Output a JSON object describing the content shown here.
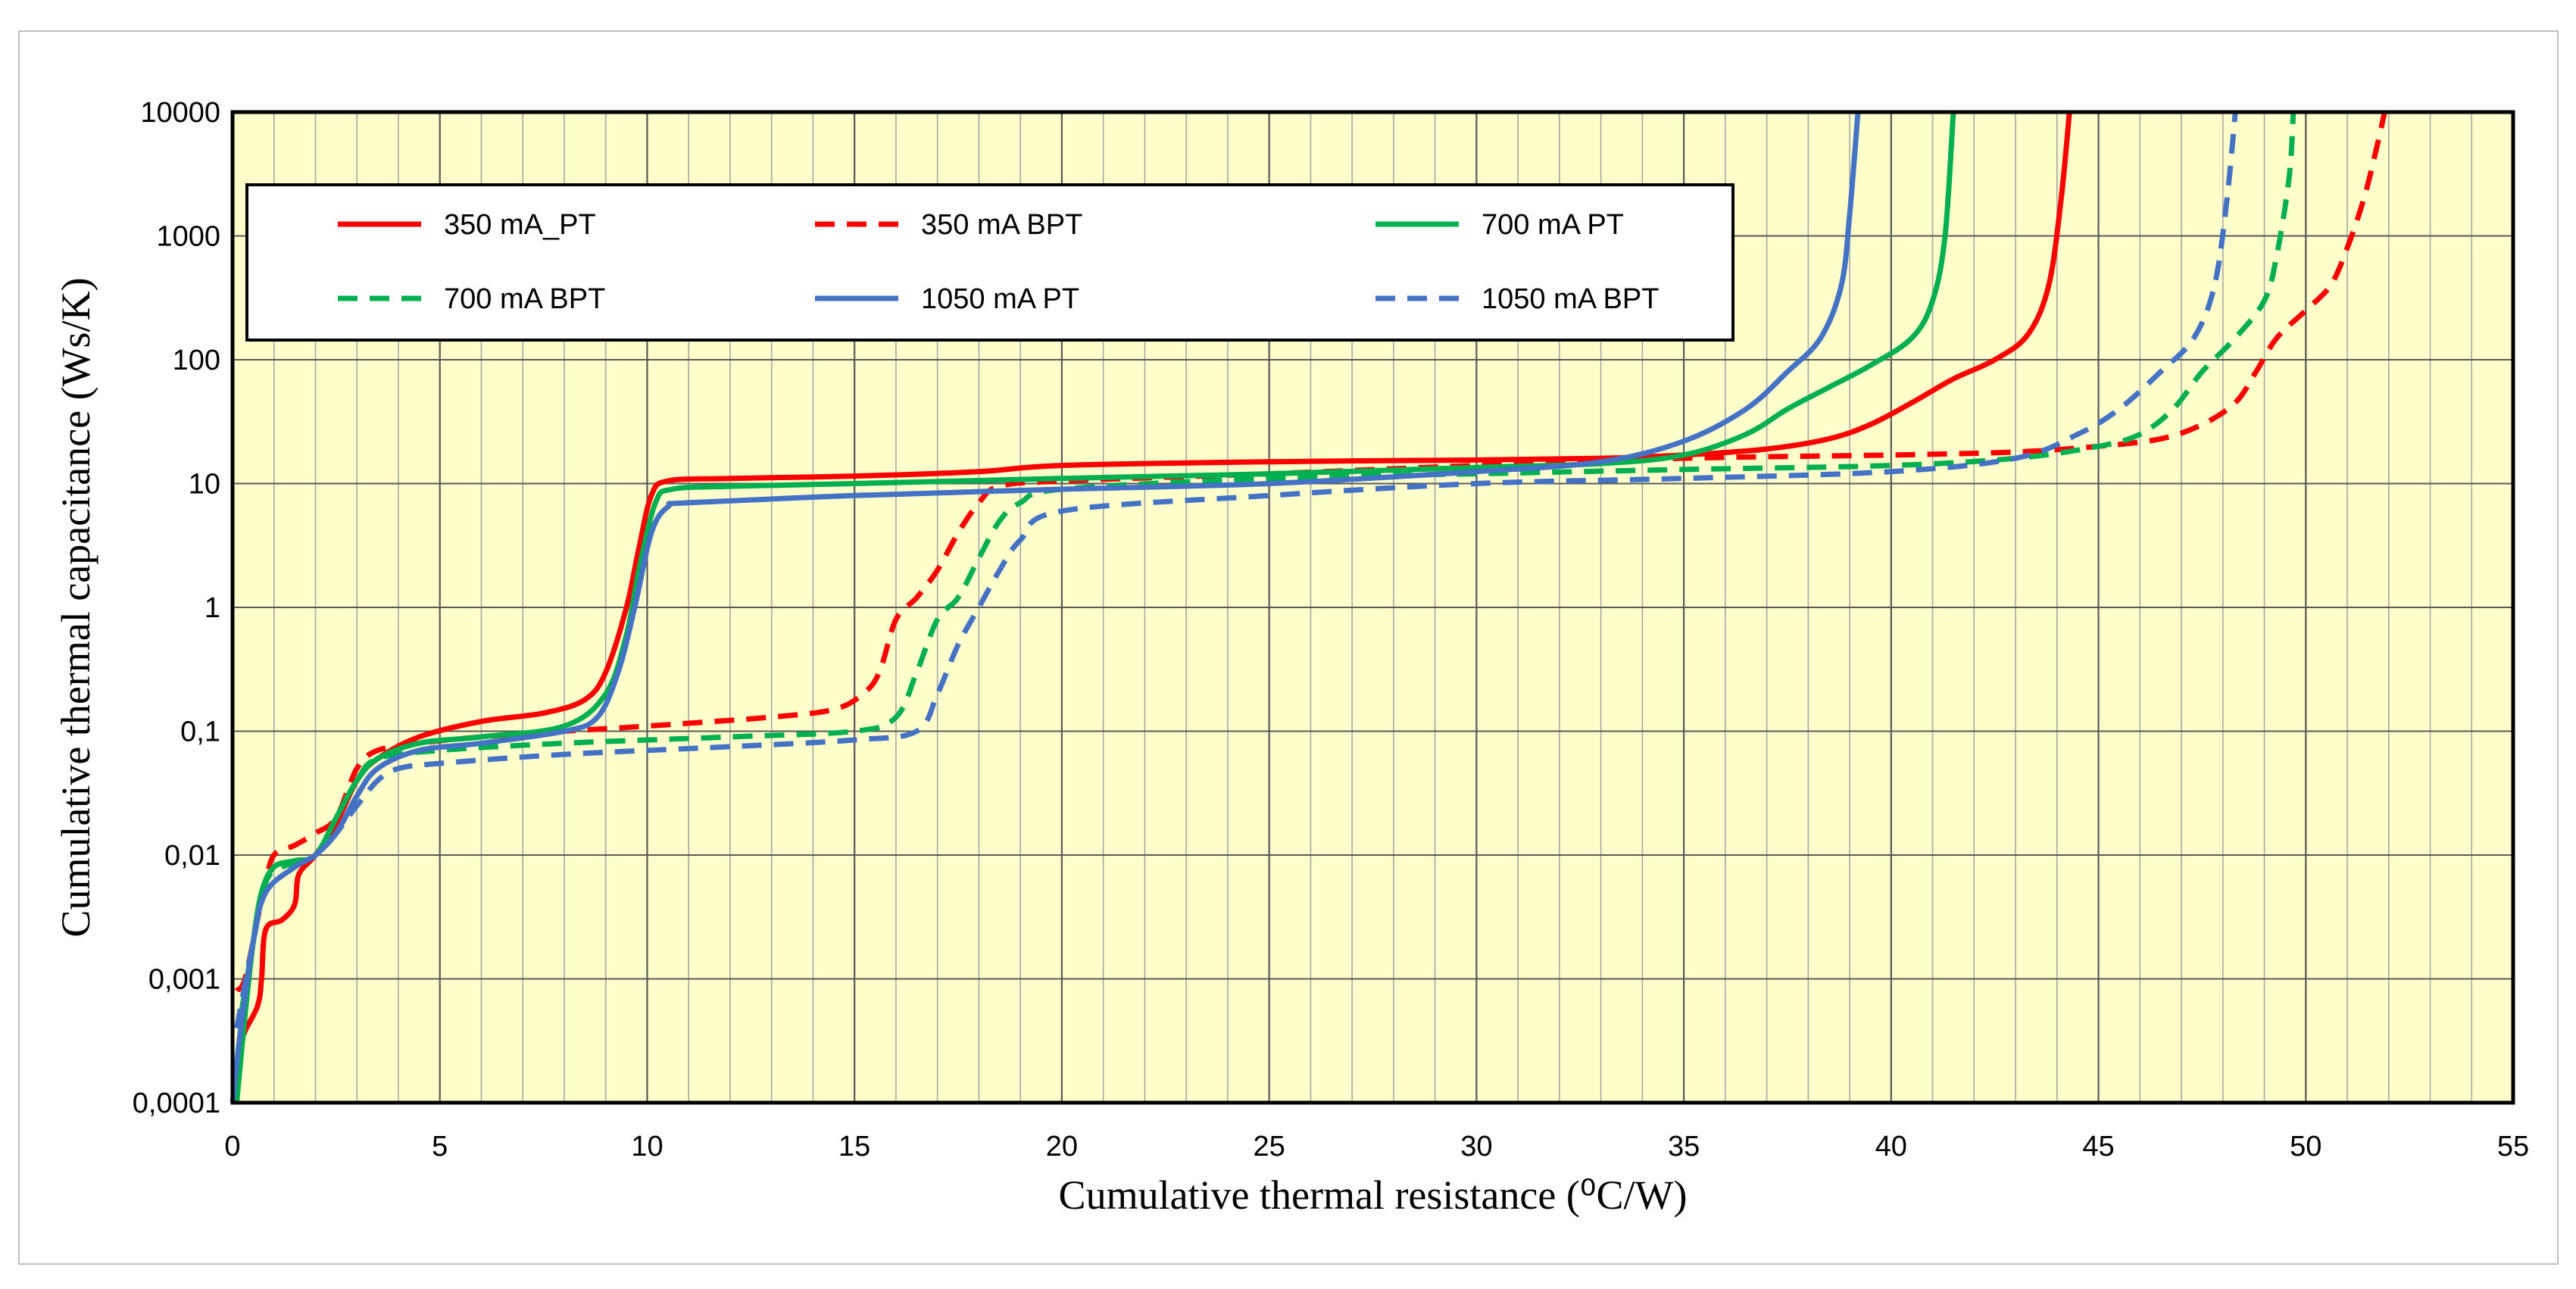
{
  "chart_data": {
    "type": "line",
    "title": "",
    "xlabel": "Cumulative thermal resistance (⁰C/W)",
    "ylabel": "Cumulative thermal capacitance (Ws/K)",
    "xlim": [
      0,
      55
    ],
    "ylim": [
      0.0001,
      10000
    ],
    "yscale": "log",
    "grid": true,
    "background": "#ffffcc",
    "x_ticks": [
      "0",
      "5",
      "10",
      "15",
      "20",
      "25",
      "30",
      "35",
      "40",
      "45",
      "50",
      "55"
    ],
    "y_ticks": [
      "0,0001",
      "0,001",
      "0,01",
      "0,1",
      "1",
      "10",
      "100",
      "1000",
      "10000"
    ],
    "legend_position": "top-left",
    "series": [
      {
        "name": "350 mA_PT",
        "color": "#ff0000",
        "dash": "solid",
        "points": [
          [
            0.1,
            0.0001
          ],
          [
            0.2,
            0.0003
          ],
          [
            0.6,
            0.0006
          ],
          [
            0.7,
            0.001
          ],
          [
            0.8,
            0.0025
          ],
          [
            1.2,
            0.003
          ],
          [
            1.5,
            0.004
          ],
          [
            1.6,
            0.007
          ],
          [
            2.0,
            0.01
          ],
          [
            2.5,
            0.018
          ],
          [
            3.0,
            0.04
          ],
          [
            3.5,
            0.06
          ],
          [
            4.5,
            0.09
          ],
          [
            6.0,
            0.12
          ],
          [
            7.5,
            0.14
          ],
          [
            8.5,
            0.18
          ],
          [
            9.0,
            0.3
          ],
          [
            9.5,
            1.0
          ],
          [
            9.8,
            3.0
          ],
          [
            10.1,
            8.0
          ],
          [
            10.5,
            10.5
          ],
          [
            12,
            11
          ],
          [
            15,
            11.5
          ],
          [
            18,
            12.5
          ],
          [
            20,
            14
          ],
          [
            25,
            15
          ],
          [
            30,
            15.5
          ],
          [
            33,
            16
          ],
          [
            35,
            17
          ],
          [
            37,
            19
          ],
          [
            38.5,
            23
          ],
          [
            39.5,
            30
          ],
          [
            40.5,
            45
          ],
          [
            41.5,
            70
          ],
          [
            42.5,
            100
          ],
          [
            43.3,
            160
          ],
          [
            43.8,
            400
          ],
          [
            44.1,
            2000
          ],
          [
            44.3,
            10000
          ]
        ]
      },
      {
        "name": "350 mA BPT",
        "color": "#ff0000",
        "dash": "dashed",
        "points": [
          [
            0.1,
            0.0008
          ],
          [
            0.3,
            0.001
          ],
          [
            0.6,
            0.003
          ],
          [
            0.8,
            0.006
          ],
          [
            1.0,
            0.01
          ],
          [
            1.5,
            0.012
          ],
          [
            2.0,
            0.015
          ],
          [
            2.5,
            0.02
          ],
          [
            3.0,
            0.05
          ],
          [
            3.5,
            0.07
          ],
          [
            4.5,
            0.08
          ],
          [
            6,
            0.09
          ],
          [
            8,
            0.1
          ],
          [
            10,
            0.11
          ],
          [
            13,
            0.13
          ],
          [
            14.5,
            0.15
          ],
          [
            15.2,
            0.2
          ],
          [
            15.6,
            0.3
          ],
          [
            16.0,
            0.8
          ],
          [
            16.5,
            1.2
          ],
          [
            17.0,
            2.0
          ],
          [
            17.5,
            4.0
          ],
          [
            18.0,
            7.0
          ],
          [
            18.5,
            9.5
          ],
          [
            20,
            10.5
          ],
          [
            25,
            12
          ],
          [
            30,
            14
          ],
          [
            35,
            16
          ],
          [
            40,
            17
          ],
          [
            43,
            18
          ],
          [
            45,
            20
          ],
          [
            46.5,
            23
          ],
          [
            47.5,
            30
          ],
          [
            48.3,
            45
          ],
          [
            48.8,
            80
          ],
          [
            49.3,
            150
          ],
          [
            50.0,
            250
          ],
          [
            50.6,
            400
          ],
          [
            51.0,
            800
          ],
          [
            51.4,
            2000
          ],
          [
            51.7,
            5000
          ],
          [
            51.9,
            10000
          ]
        ]
      },
      {
        "name": "700 mA PT",
        "color": "#00b050",
        "dash": "solid",
        "points": [
          [
            0.1,
            0.0001
          ],
          [
            0.3,
            0.0005
          ],
          [
            0.5,
            0.002
          ],
          [
            0.7,
            0.005
          ],
          [
            1.0,
            0.008
          ],
          [
            1.5,
            0.009
          ],
          [
            2.0,
            0.01
          ],
          [
            2.5,
            0.02
          ],
          [
            3.0,
            0.04
          ],
          [
            3.5,
            0.06
          ],
          [
            4.5,
            0.08
          ],
          [
            6,
            0.09
          ],
          [
            8,
            0.11
          ],
          [
            9.0,
            0.2
          ],
          [
            9.5,
            0.6
          ],
          [
            9.8,
            2.0
          ],
          [
            10.2,
            7.0
          ],
          [
            10.6,
            9.0
          ],
          [
            12,
            9.5
          ],
          [
            15,
            10
          ],
          [
            20,
            11
          ],
          [
            25,
            12
          ],
          [
            30,
            13.5
          ],
          [
            33,
            14.5
          ],
          [
            35,
            17
          ],
          [
            36.5,
            25
          ],
          [
            37.5,
            40
          ],
          [
            38.5,
            60
          ],
          [
            39.5,
            90
          ],
          [
            40.5,
            150
          ],
          [
            41.0,
            300
          ],
          [
            41.3,
            1000
          ],
          [
            41.5,
            10000
          ]
        ]
      },
      {
        "name": "700 mA BPT",
        "color": "#00b050",
        "dash": "dashed",
        "points": [
          [
            0.2,
            0.0005
          ],
          [
            0.5,
            0.002
          ],
          [
            0.8,
            0.006
          ],
          [
            1.2,
            0.008
          ],
          [
            2.0,
            0.01
          ],
          [
            2.5,
            0.02
          ],
          [
            3.0,
            0.04
          ],
          [
            3.5,
            0.06
          ],
          [
            5,
            0.07
          ],
          [
            8,
            0.08
          ],
          [
            12,
            0.09
          ],
          [
            15,
            0.1
          ],
          [
            16.0,
            0.13
          ],
          [
            16.5,
            0.3
          ],
          [
            17.0,
            0.8
          ],
          [
            17.5,
            1.2
          ],
          [
            18.0,
            2.5
          ],
          [
            18.5,
            5.0
          ],
          [
            19.0,
            7.0
          ],
          [
            20,
            9.0
          ],
          [
            25,
            11
          ],
          [
            30,
            12
          ],
          [
            35,
            13
          ],
          [
            40,
            14
          ],
          [
            43,
            16
          ],
          [
            45,
            20
          ],
          [
            46,
            25
          ],
          [
            46.8,
            40
          ],
          [
            47.5,
            80
          ],
          [
            48.3,
            150
          ],
          [
            49.0,
            300
          ],
          [
            49.3,
            700
          ],
          [
            49.6,
            3000
          ],
          [
            49.7,
            10000
          ]
        ]
      },
      {
        "name": "1050 mA PT",
        "color": "#4472c4",
        "dash": "solid",
        "points": [
          [
            0.0,
            0.0001
          ],
          [
            0.2,
            0.0004
          ],
          [
            0.5,
            0.002
          ],
          [
            0.8,
            0.005
          ],
          [
            1.5,
            0.008
          ],
          [
            2.0,
            0.01
          ],
          [
            2.5,
            0.015
          ],
          [
            3.0,
            0.03
          ],
          [
            3.5,
            0.05
          ],
          [
            4.5,
            0.07
          ],
          [
            6,
            0.08
          ],
          [
            8,
            0.1
          ],
          [
            8.8,
            0.13
          ],
          [
            9.3,
            0.3
          ],
          [
            9.7,
            1.0
          ],
          [
            10.1,
            4.0
          ],
          [
            10.5,
            6.5
          ],
          [
            11,
            7.0
          ],
          [
            15,
            8.0
          ],
          [
            20,
            9.0
          ],
          [
            25,
            10
          ],
          [
            30,
            12.5
          ],
          [
            33,
            15
          ],
          [
            35,
            22
          ],
          [
            36.5,
            40
          ],
          [
            37.5,
            80
          ],
          [
            38.3,
            150
          ],
          [
            38.8,
            400
          ],
          [
            39.0,
            1500
          ],
          [
            39.2,
            10000
          ]
        ]
      },
      {
        "name": "1050 mA BPT",
        "color": "#4472c4",
        "dash": "dashed",
        "points": [
          [
            0.1,
            0.0004
          ],
          [
            0.5,
            0.002
          ],
          [
            0.8,
            0.005
          ],
          [
            1.5,
            0.008
          ],
          [
            2.0,
            0.01
          ],
          [
            2.5,
            0.015
          ],
          [
            3.0,
            0.025
          ],
          [
            3.5,
            0.04
          ],
          [
            4.0,
            0.05
          ],
          [
            5,
            0.055
          ],
          [
            8,
            0.065
          ],
          [
            12,
            0.075
          ],
          [
            15,
            0.085
          ],
          [
            16.5,
            0.1
          ],
          [
            17.0,
            0.2
          ],
          [
            17.5,
            0.5
          ],
          [
            18.0,
            1.0
          ],
          [
            18.5,
            2.0
          ],
          [
            19.0,
            3.5
          ],
          [
            20,
            6.0
          ],
          [
            25,
            8
          ],
          [
            30,
            10
          ],
          [
            35,
            11
          ],
          [
            40,
            12.5
          ],
          [
            43,
            16
          ],
          [
            44.5,
            25
          ],
          [
            45.5,
            40
          ],
          [
            46.5,
            80
          ],
          [
            47.3,
            150
          ],
          [
            47.8,
            400
          ],
          [
            48.1,
            2000
          ],
          [
            48.3,
            10000
          ]
        ]
      }
    ]
  }
}
